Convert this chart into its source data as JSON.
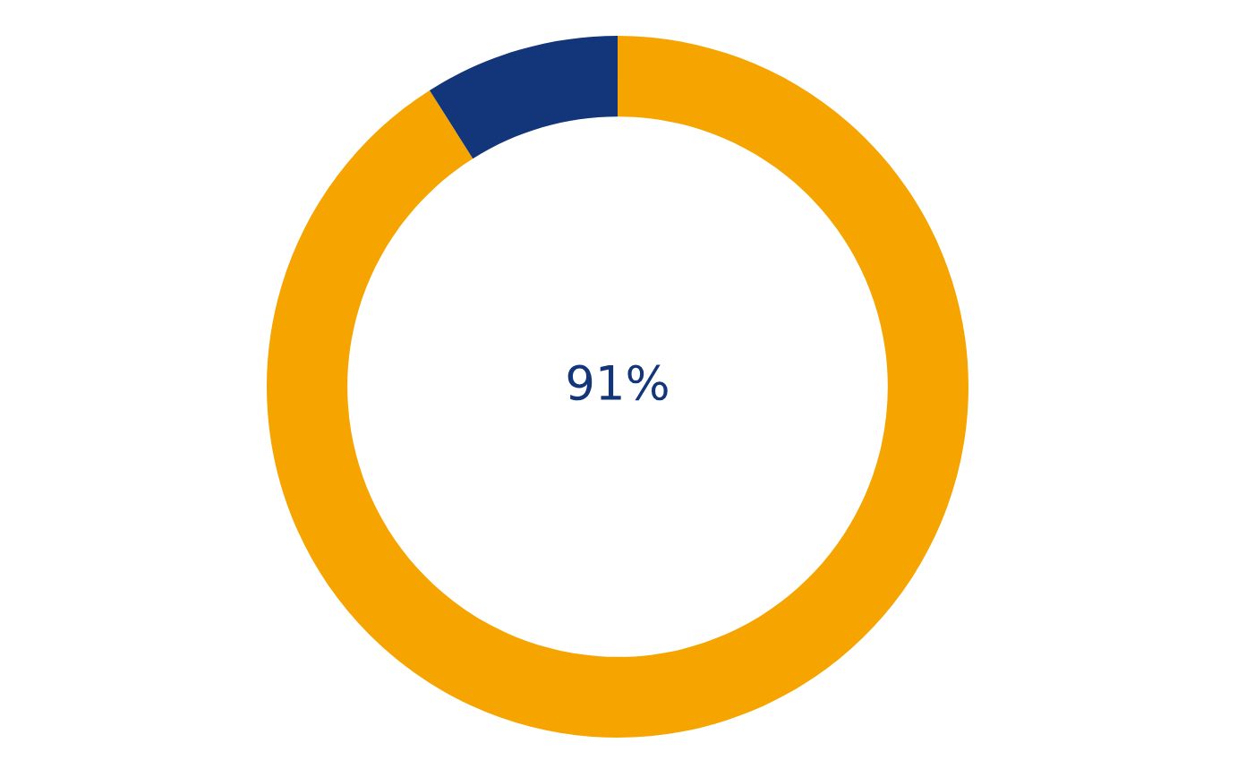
{
  "chart_data": {
    "type": "donut",
    "categories": [
      null,
      null
    ],
    "values": [
      91,
      9
    ],
    "colors": [
      "#f6a500",
      "#13357a"
    ],
    "annotations": [
      "91%"
    ],
    "legend": false
  }
}
